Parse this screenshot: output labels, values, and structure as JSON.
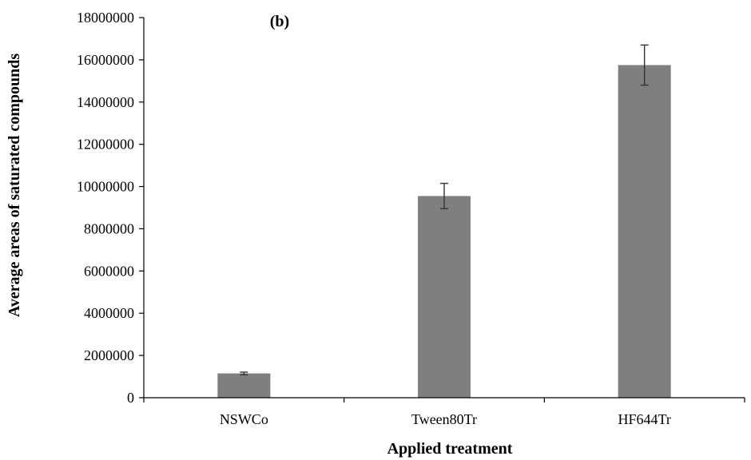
{
  "chart_data": {
    "type": "bar",
    "panel_label": "(b)",
    "title": "",
    "xlabel": "Applied treatment",
    "ylabel": "Average areas of saturated compounds",
    "categories": [
      "NSWCo",
      "Tween80Tr",
      "HF644Tr"
    ],
    "values": [
      1150000,
      9550000,
      15750000
    ],
    "errors": [
      60000,
      600000,
      950000
    ],
    "ylim": [
      0,
      18000000
    ],
    "yticks": [
      0,
      2000000,
      4000000,
      6000000,
      8000000,
      10000000,
      12000000,
      14000000,
      16000000,
      18000000
    ],
    "ytick_labels": [
      "0",
      "2000000",
      "4000000",
      "6000000",
      "8000000",
      "10000000",
      "12000000",
      "14000000",
      "16000000",
      "18000000"
    ],
    "grid": false,
    "legend": "none",
    "bar_color": "#7f7f7f"
  }
}
